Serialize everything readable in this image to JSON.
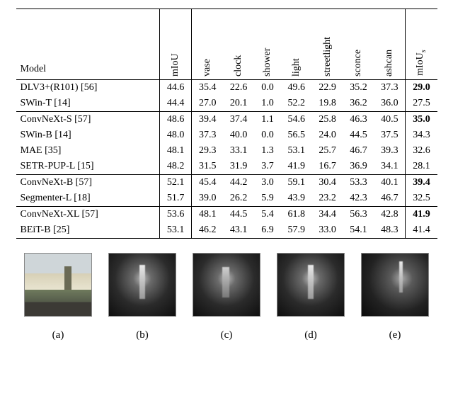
{
  "table": {
    "columns": [
      {
        "key": "model",
        "label": "Model",
        "rotated": false,
        "sep": false
      },
      {
        "key": "miou",
        "label": "mIoU",
        "rotated": true,
        "sep": true
      },
      {
        "key": "vase",
        "label": "vase",
        "rotated": true,
        "sep": true
      },
      {
        "key": "clock",
        "label": "clock",
        "rotated": true,
        "sep": false
      },
      {
        "key": "shower",
        "label": "shower",
        "rotated": true,
        "sep": false
      },
      {
        "key": "light",
        "label": "light",
        "rotated": true,
        "sep": false
      },
      {
        "key": "streetlight",
        "label": "streetlight",
        "rotated": true,
        "sep": false
      },
      {
        "key": "sconce",
        "label": "sconce",
        "rotated": true,
        "sep": false
      },
      {
        "key": "ashcan",
        "label": "ashcan",
        "rotated": true,
        "sep": false
      },
      {
        "key": "mious",
        "label": "mIoU",
        "sub": "s",
        "rotated": true,
        "sep": true
      }
    ],
    "groups": [
      {
        "rows": [
          {
            "model": "DLV3+(R101) [56]",
            "miou": "44.6",
            "vase": "35.4",
            "clock": "22.6",
            "shower": "0.0",
            "light": "49.6",
            "streetlight": "22.9",
            "sconce": "35.2",
            "ashcan": "37.3",
            "mious": "29.0",
            "bold_last": true
          },
          {
            "model": "SWin-T [14]",
            "miou": "44.4",
            "vase": "27.0",
            "clock": "20.1",
            "shower": "1.0",
            "light": "52.2",
            "streetlight": "19.8",
            "sconce": "36.2",
            "ashcan": "36.0",
            "mious": "27.5"
          }
        ]
      },
      {
        "rows": [
          {
            "model": "ConvNeXt-S [57]",
            "miou": "48.6",
            "vase": "39.4",
            "clock": "37.4",
            "shower": "1.1",
            "light": "54.6",
            "streetlight": "25.8",
            "sconce": "46.3",
            "ashcan": "40.5",
            "mious": "35.0",
            "bold_last": true
          },
          {
            "model": "SWin-B [14]",
            "miou": "48.0",
            "vase": "37.3",
            "clock": "40.0",
            "shower": "0.0",
            "light": "56.5",
            "streetlight": "24.0",
            "sconce": "44.5",
            "ashcan": "37.5",
            "mious": "34.3"
          },
          {
            "model": "MAE [35]",
            "miou": "48.1",
            "vase": "29.3",
            "clock": "33.1",
            "shower": "1.3",
            "light": "53.1",
            "streetlight": "25.7",
            "sconce": "46.7",
            "ashcan": "39.3",
            "mious": "32.6"
          },
          {
            "model": "SETR-PUP-L [15]",
            "miou": "48.2",
            "vase": "31.5",
            "clock": "31.9",
            "shower": "3.7",
            "light": "41.9",
            "streetlight": "16.7",
            "sconce": "36.9",
            "ashcan": "34.1",
            "mious": "28.1"
          }
        ]
      },
      {
        "rows": [
          {
            "model": "ConvNeXt-B [57]",
            "miou": "52.1",
            "vase": "45.4",
            "clock": "44.2",
            "shower": "3.0",
            "light": "59.1",
            "streetlight": "30.4",
            "sconce": "53.3",
            "ashcan": "40.1",
            "mious": "39.4",
            "bold_last": true
          },
          {
            "model": "Segmenter-L [18]",
            "miou": "51.7",
            "vase": "39.0",
            "clock": "26.2",
            "shower": "5.9",
            "light": "43.9",
            "streetlight": "23.2",
            "sconce": "42.3",
            "ashcan": "46.7",
            "mious": "32.5"
          }
        ]
      },
      {
        "rows": [
          {
            "model": "ConvNeXt-XL [57]",
            "miou": "53.6",
            "vase": "48.1",
            "clock": "44.5",
            "shower": "5.4",
            "light": "61.8",
            "streetlight": "34.4",
            "sconce": "56.3",
            "ashcan": "42.8",
            "mious": "41.9",
            "bold_last": true
          },
          {
            "model": "BEiT-B [25]",
            "miou": "53.1",
            "vase": "46.2",
            "clock": "43.1",
            "shower": "6.9",
            "light": "57.9",
            "streetlight": "33.0",
            "sconce": "54.1",
            "ashcan": "48.3",
            "mious": "41.4"
          }
        ]
      }
    ]
  },
  "figure": {
    "items": [
      {
        "caption": "(a)",
        "variant": "a"
      },
      {
        "caption": "(b)",
        "variant": "dark"
      },
      {
        "caption": "(c)",
        "variant": "dark c"
      },
      {
        "caption": "(d)",
        "variant": "dark"
      },
      {
        "caption": "(e)",
        "variant": "dark e"
      }
    ]
  }
}
